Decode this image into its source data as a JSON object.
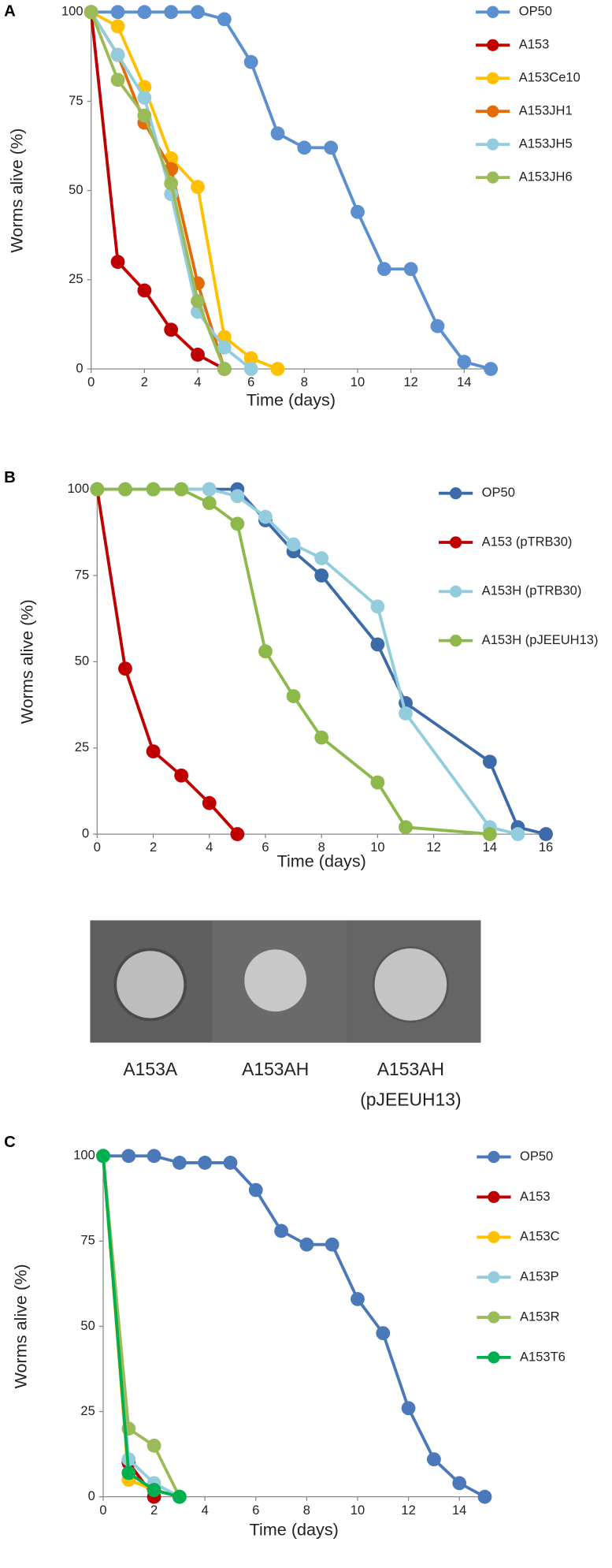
{
  "panel_labels": [
    "A",
    "B",
    "C"
  ],
  "colony_image": {
    "labels": [
      [
        "A153A"
      ],
      [
        "A153AH"
      ],
      [
        "A153AH",
        "(pJEEUH13)"
      ]
    ]
  },
  "chart_data": [
    {
      "type": "line",
      "x_label": "Time (days)",
      "y_label": "Worms alive (%)",
      "xlim": [
        0,
        15
      ],
      "xticks": [
        0,
        2,
        4,
        6,
        8,
        10,
        12,
        14
      ],
      "ylim": [
        0,
        100
      ],
      "yticks": [
        0,
        25,
        50,
        75,
        100
      ],
      "grid": false,
      "legend": "right",
      "series": [
        {
          "name": "OP50",
          "color": "#5b8fd0",
          "x": [
            0,
            1,
            2,
            3,
            4,
            5,
            6,
            7,
            8,
            9,
            10,
            11,
            12,
            13,
            14,
            15
          ],
          "values": [
            100,
            100,
            100,
            100,
            100,
            98,
            86,
            66,
            62,
            62,
            44,
            28,
            28,
            12,
            2,
            0
          ]
        },
        {
          "name": "A153",
          "color": "#c00000",
          "x": [
            0,
            1,
            2,
            3,
            4,
            5
          ],
          "values": [
            100,
            30,
            22,
            11,
            4,
            0
          ]
        },
        {
          "name": "A153Ce10",
          "color": "#ffc000",
          "x": [
            0,
            1,
            2,
            3,
            4,
            5,
            6,
            7
          ],
          "values": [
            100,
            96,
            79,
            59,
            51,
            9,
            3,
            0
          ]
        },
        {
          "name": "A153JH1",
          "color": "#e36c09",
          "x": [
            0,
            1,
            2,
            3,
            4,
            5
          ],
          "values": [
            100,
            88,
            69,
            56,
            24,
            0
          ]
        },
        {
          "name": "A153JH5",
          "color": "#93cddd",
          "x": [
            0,
            1,
            2,
            3,
            4,
            5,
            6
          ],
          "values": [
            100,
            88,
            76,
            49,
            16,
            6,
            0
          ]
        },
        {
          "name": "A153JH6",
          "color": "#9bbb59",
          "x": [
            0,
            1,
            2,
            3,
            4,
            5
          ],
          "values": [
            100,
            81,
            71,
            52,
            19,
            0
          ]
        }
      ]
    },
    {
      "type": "line",
      "x_label": "Time (days)",
      "y_label": "Worms alive (%)",
      "xlim": [
        0,
        16
      ],
      "xticks": [
        0,
        2,
        4,
        6,
        8,
        10,
        12,
        14,
        16
      ],
      "ylim": [
        0,
        100
      ],
      "yticks": [
        0,
        25,
        50,
        75,
        100
      ],
      "grid": false,
      "legend": "right",
      "series": [
        {
          "name": "OP50",
          "color": "#3d6aa8",
          "x": [
            0,
            1,
            2,
            3,
            4,
            5,
            6,
            7,
            8,
            10,
            11,
            14,
            15,
            16
          ],
          "values": [
            100,
            100,
            100,
            100,
            100,
            100,
            91,
            82,
            75,
            55,
            38,
            21,
            2,
            0
          ]
        },
        {
          "name": "A153 (pTRB30)",
          "color": "#c00000",
          "x": [
            0,
            1,
            2,
            3,
            4,
            5
          ],
          "values": [
            100,
            48,
            24,
            17,
            9,
            0
          ]
        },
        {
          "name": "A153H (pTRB30)",
          "color": "#93cddd",
          "x": [
            0,
            1,
            2,
            3,
            4,
            5,
            6,
            7,
            8,
            10,
            11,
            14,
            15
          ],
          "values": [
            100,
            100,
            100,
            100,
            100,
            98,
            92,
            84,
            80,
            66,
            35,
            2,
            0
          ]
        },
        {
          "name": "A153H (pJEEUH13)",
          "color": "#8db84a",
          "x": [
            0,
            1,
            2,
            3,
            4,
            5,
            6,
            7,
            8,
            10,
            11,
            14
          ],
          "values": [
            100,
            100,
            100,
            100,
            96,
            90,
            53,
            40,
            28,
            15,
            2,
            0
          ]
        }
      ]
    },
    {
      "type": "line",
      "x_label": "Time (days)",
      "y_label": "Worms alive (%)",
      "xlim": [
        0,
        15
      ],
      "xticks": [
        0,
        2,
        4,
        6,
        8,
        10,
        12,
        14
      ],
      "ylim": [
        0,
        100
      ],
      "yticks": [
        0,
        25,
        50,
        75,
        100
      ],
      "grid": false,
      "legend": "right",
      "series": [
        {
          "name": "OP50",
          "color": "#4a78b8",
          "x": [
            0,
            1,
            2,
            3,
            4,
            5,
            6,
            7,
            8,
            9,
            10,
            11,
            12,
            13,
            14,
            15
          ],
          "values": [
            100,
            100,
            100,
            98,
            98,
            98,
            90,
            78,
            74,
            74,
            58,
            48,
            26,
            11,
            4,
            0
          ]
        },
        {
          "name": "A153",
          "color": "#c00000",
          "x": [
            0,
            1,
            2
          ],
          "values": [
            100,
            10,
            0
          ]
        },
        {
          "name": "A153C",
          "color": "#ffc000",
          "x": [
            0,
            1,
            2,
            3
          ],
          "values": [
            100,
            5,
            2,
            0
          ]
        },
        {
          "name": "A153P",
          "color": "#93cddd",
          "x": [
            0,
            1,
            2,
            3
          ],
          "values": [
            100,
            11,
            4,
            0
          ]
        },
        {
          "name": "A153R",
          "color": "#9bbb59",
          "x": [
            0,
            1,
            2,
            3
          ],
          "values": [
            100,
            20,
            15,
            0
          ]
        },
        {
          "name": "A153T6",
          "color": "#00b050",
          "x": [
            0,
            1,
            2,
            3
          ],
          "values": [
            100,
            7,
            2,
            0
          ]
        }
      ]
    }
  ]
}
